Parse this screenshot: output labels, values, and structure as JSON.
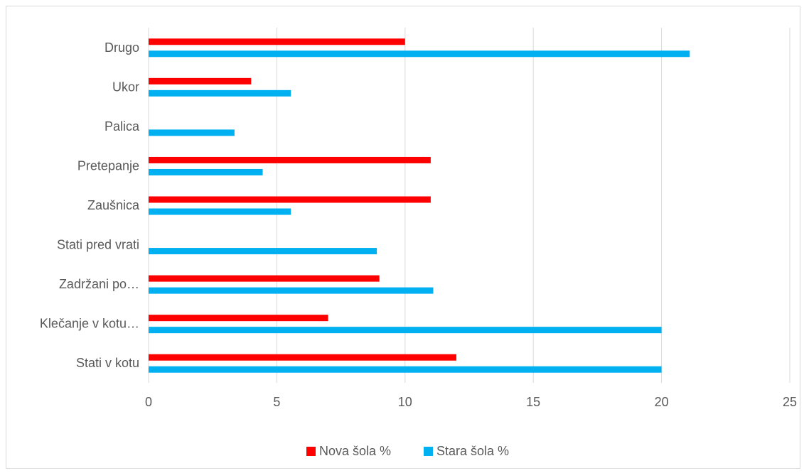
{
  "chart_data": {
    "type": "bar",
    "orientation": "horizontal",
    "title": "",
    "xlabel": "",
    "ylabel": "",
    "categories": [
      "Stati v kotu",
      "Klečanje v kotu…",
      "Zadržani po…",
      "Stati pred vrati",
      "Zaušnica",
      "Pretepanje",
      "Palica",
      "Ukor",
      "Drugo"
    ],
    "series": [
      {
        "name": "Nova šola %",
        "color": "#ff0000",
        "values": [
          12,
          7,
          9,
          0,
          11,
          11,
          0,
          4,
          10
        ]
      },
      {
        "name": "Stara šola %",
        "color": "#00b0f0",
        "values": [
          20,
          20,
          11.1,
          8.9,
          5.55,
          4.45,
          3.35,
          5.55,
          21.1
        ]
      }
    ],
    "xlim": [
      0,
      25
    ],
    "xticks": [
      "0",
      "5",
      "10",
      "15",
      "20",
      "25"
    ],
    "grid": true,
    "legend_position": "bottom"
  }
}
